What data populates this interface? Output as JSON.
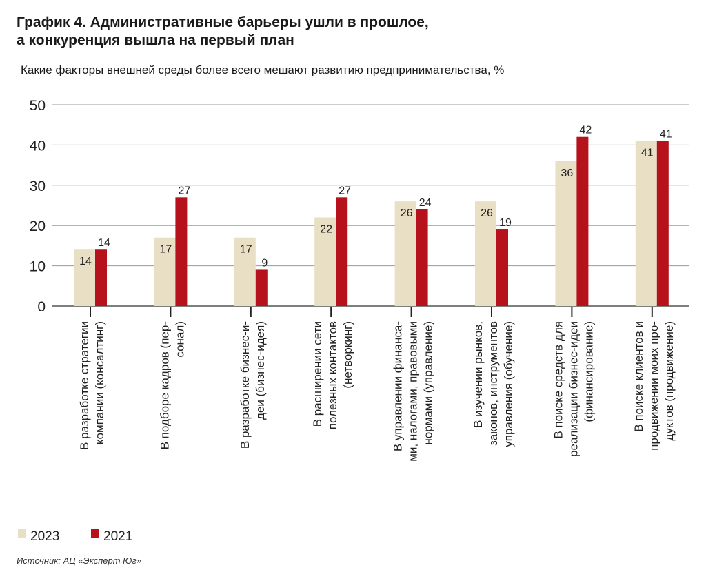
{
  "chart_data": {
    "type": "bar",
    "title": "График 4. Административные барьеры ушли в прошлое, а конкуренция вышла на первый план",
    "title_lines": [
      "График 4. Административные барьеры ушли в прошлое,",
      "а конкуренция вышла на первый план"
    ],
    "subtitle": "Какие факторы внешней среды более всего мешают развитию предпринимательства, %",
    "ylim": [
      0,
      50
    ],
    "yticks": [
      "0",
      "10",
      "20",
      "30",
      "40",
      "50"
    ],
    "grid": true,
    "legend_position": "bottom-left",
    "categories": [
      [
        "В разработке стратегии",
        "компании (консалтинг)"
      ],
      [
        "В подборе кадров (пер-",
        "сонал)"
      ],
      [
        "В разработке бизнес-и-",
        "деи (бизнес-идея)"
      ],
      [
        "В расширении сети",
        "полезных контактов",
        "(нетворкинг)"
      ],
      [
        "В управлении финанса-",
        "ми, налогами, правовыми",
        "нормами (управление)"
      ],
      [
        "В изучении рынков,",
        "законов, инструментов",
        "управления (обучение)"
      ],
      [
        "В поиске средств для",
        "реализации бизнес-идеи",
        "(финансирование)"
      ],
      [
        "В поиске клиентов и",
        "продвижении моих про-",
        "дуктов (продвижение)"
      ]
    ],
    "series": [
      {
        "name": "2023",
        "color": "#e8dfc4",
        "values": [
          14,
          17,
          17,
          22,
          26,
          26,
          36,
          41
        ]
      },
      {
        "name": "2021",
        "color": "#b5121b",
        "values": [
          14,
          27,
          9,
          27,
          24,
          19,
          42,
          41
        ]
      }
    ]
  },
  "source": "Источник: АЦ «Эксперт Юг»"
}
